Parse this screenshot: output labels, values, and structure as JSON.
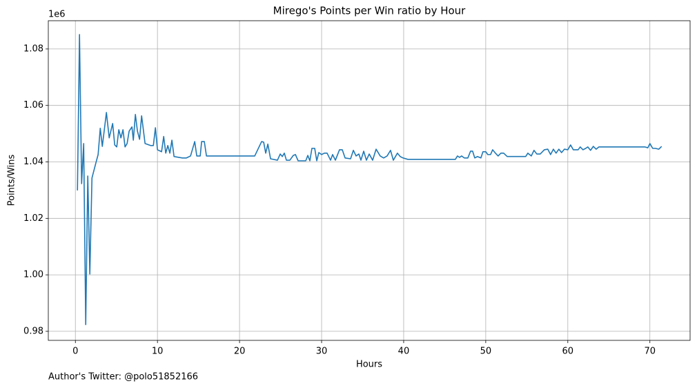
{
  "chart_data": {
    "type": "line",
    "title": "Mirego's Points per Win ratio by Hour",
    "xlabel": "Hours",
    "ylabel": "Points/Wins",
    "y_offset_label": "1e6",
    "footnote": "Author's Twitter: @polo51852166",
    "color": "#1f77b4",
    "grid": true,
    "xlim": [
      -3.3,
      74.9
    ],
    "ylim": [
      976800,
      1090000
    ],
    "xticks": [
      0,
      10,
      20,
      30,
      40,
      50,
      60,
      70
    ],
    "yticks": [
      {
        "value": 980000,
        "label": "0.98"
      },
      {
        "value": 1000000,
        "label": "1.00"
      },
      {
        "value": 1020000,
        "label": "1.02"
      },
      {
        "value": 1040000,
        "label": "1.04"
      },
      {
        "value": 1060000,
        "label": "1.06"
      },
      {
        "value": 1080000,
        "label": "1.08"
      }
    ],
    "x": [
      0.25,
      0.5,
      0.76,
      1.01,
      1.26,
      1.51,
      1.76,
      2.02,
      2.52,
      2.77,
      3.03,
      3.28,
      3.78,
      4.12,
      4.54,
      4.79,
      5.04,
      5.29,
      5.55,
      5.8,
      6.05,
      6.3,
      6.55,
      6.89,
      7.06,
      7.31,
      7.56,
      7.82,
      8.07,
      8.49,
      9.16,
      9.5,
      9.75,
      10.0,
      10.5,
      10.76,
      11.01,
      11.26,
      11.51,
      11.76,
      12.02,
      13.03,
      13.53,
      14.03,
      14.54,
      14.79,
      15.21,
      15.38,
      15.71,
      15.97,
      21.85,
      22.69,
      22.94,
      23.19,
      23.45,
      23.78,
      24.62,
      24.96,
      25.21,
      25.46,
      25.71,
      26.13,
      26.55,
      26.81,
      27.14,
      28.07,
      28.32,
      28.57,
      28.82,
      29.16,
      29.41,
      29.66,
      30.0,
      30.34,
      30.67,
      31.09,
      31.34,
      31.68,
      32.18,
      32.52,
      32.86,
      33.53,
      33.87,
      34.2,
      34.54,
      34.79,
      35.13,
      35.46,
      35.8,
      36.22,
      36.64,
      37.14,
      37.56,
      37.98,
      38.4,
      38.74,
      39.24,
      39.58,
      39.92,
      40.5,
      41.26,
      46.3,
      46.55,
      46.81,
      47.06,
      47.39,
      47.82,
      48.15,
      48.4,
      48.66,
      48.99,
      49.41,
      49.66,
      50.0,
      50.25,
      50.59,
      50.84,
      51.18,
      51.51,
      51.85,
      52.18,
      52.61,
      54.87,
      55.13,
      55.55,
      55.88,
      56.22,
      56.64,
      57.14,
      57.56,
      57.9,
      58.24,
      58.57,
      58.91,
      59.24,
      59.58,
      60.0,
      60.34,
      60.67,
      61.26,
      61.51,
      61.85,
      62.18,
      62.44,
      62.77,
      63.11,
      63.45,
      63.78,
      69.41,
      69.75,
      70.0,
      70.34,
      70.67,
      71.09,
      71.43
    ],
    "values": [
      1029900,
      1085100,
      1032300,
      1046500,
      982400,
      1035000,
      1000300,
      1034300,
      1039900,
      1042600,
      1051900,
      1045500,
      1057500,
      1048500,
      1053600,
      1046000,
      1045300,
      1051400,
      1048500,
      1051400,
      1045300,
      1046500,
      1050900,
      1052400,
      1047700,
      1056800,
      1050900,
      1048000,
      1056300,
      1046500,
      1045800,
      1045800,
      1052100,
      1044300,
      1043600,
      1049000,
      1043100,
      1045800,
      1043100,
      1047700,
      1041900,
      1041400,
      1041400,
      1042100,
      1047200,
      1042100,
      1042100,
      1047200,
      1047200,
      1042100,
      1042100,
      1047200,
      1047000,
      1043100,
      1046300,
      1041100,
      1040600,
      1042800,
      1041900,
      1043100,
      1040600,
      1040600,
      1042300,
      1042600,
      1040400,
      1040400,
      1042300,
      1040400,
      1044800,
      1044800,
      1040400,
      1043300,
      1042600,
      1043100,
      1043100,
      1040600,
      1042600,
      1040600,
      1044300,
      1044300,
      1041400,
      1041100,
      1044100,
      1042100,
      1042800,
      1040600,
      1043800,
      1040600,
      1042800,
      1040600,
      1044500,
      1042100,
      1041400,
      1042100,
      1044100,
      1040600,
      1043100,
      1041900,
      1041400,
      1040900,
      1040900,
      1040900,
      1042100,
      1041600,
      1042100,
      1041400,
      1041400,
      1043800,
      1043800,
      1041400,
      1041900,
      1041400,
      1043600,
      1043600,
      1042600,
      1042600,
      1044300,
      1043100,
      1042100,
      1043100,
      1043100,
      1041900,
      1041900,
      1043100,
      1042100,
      1044100,
      1042800,
      1042800,
      1044300,
      1044500,
      1042600,
      1044500,
      1043100,
      1044500,
      1043300,
      1044500,
      1044300,
      1046000,
      1044300,
      1044300,
      1045300,
      1044300,
      1044800,
      1045300,
      1044100,
      1045500,
      1044500,
      1045300,
      1045300,
      1045000,
      1046500,
      1044800,
      1044800,
      1044500,
      1045500
    ]
  }
}
